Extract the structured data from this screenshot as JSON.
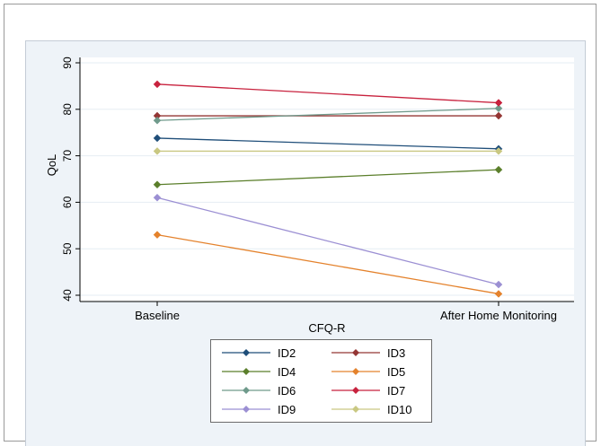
{
  "chart_data": {
    "type": "line",
    "categories": [
      "Baseline",
      "After Home Monitoring"
    ],
    "xlabel": "CFQ-R",
    "ylabel": "QoL",
    "ylim": [
      40,
      90
    ],
    "yticks": [
      "40",
      "50",
      "60",
      "70",
      "80",
      "90"
    ],
    "grid": true,
    "legend_position": "bottom",
    "series": [
      {
        "name": "ID2",
        "values": [
          73.8,
          71.5
        ],
        "color": "#1f4e79"
      },
      {
        "name": "ID3",
        "values": [
          78.6,
          78.6
        ],
        "color": "#943634"
      },
      {
        "name": "ID4",
        "values": [
          63.8,
          67.0
        ],
        "color": "#5b7f2b"
      },
      {
        "name": "ID5",
        "values": [
          53.0,
          40.3
        ],
        "color": "#e4822c"
      },
      {
        "name": "ID6",
        "values": [
          77.6,
          80.2
        ],
        "color": "#6f9a8b"
      },
      {
        "name": "ID7",
        "values": [
          85.4,
          81.4
        ],
        "color": "#c8223e"
      },
      {
        "name": "ID9",
        "values": [
          61.0,
          42.3
        ],
        "color": "#9b8fd3"
      },
      {
        "name": "ID10",
        "values": [
          71.0,
          71.0
        ],
        "color": "#c9c882"
      }
    ]
  }
}
